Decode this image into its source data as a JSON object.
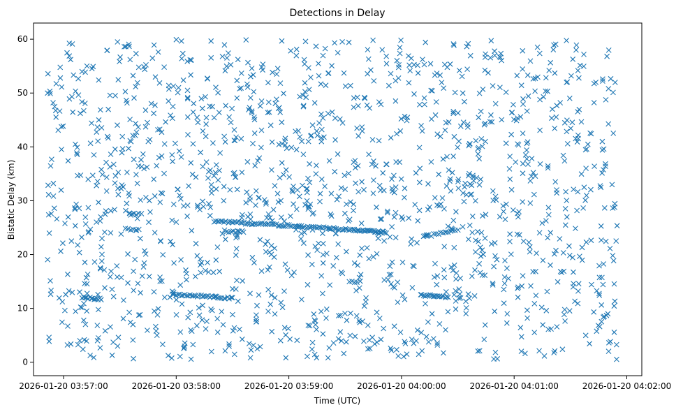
{
  "chart_data": {
    "type": "scatter",
    "title": "Detections in Delay",
    "xlabel": "Time (UTC)",
    "ylabel": "Bistatic Delay (km)",
    "marker": "x",
    "marker_color": "#1f77b4",
    "xlim": [
      "2026-01-20 03:56:44",
      "2026-01-20 04:02:08"
    ],
    "ylim": [
      -2.5,
      63
    ],
    "grid": false,
    "legend": "none",
    "x_ticks": [
      "2026-01-20 03:57:00",
      "2026-01-20 03:58:00",
      "2026-01-20 03:59:00",
      "2026-01-20 04:00:00",
      "2026-01-20 04:01:00",
      "2026-01-20 04:02:00"
    ],
    "y_ticks": [
      0,
      10,
      20,
      30,
      40,
      50,
      60
    ],
    "clutter": {
      "start": "2026-01-20 03:56:51",
      "end": "2026-01-20 04:01:55",
      "count": 1500,
      "delay_range": [
        0.5,
        60
      ]
    },
    "tracks": [
      {
        "start": "2026-01-20 03:57:10",
        "end": "2026-01-20 03:57:20",
        "delay_start": 12.0,
        "delay_end": 11.7,
        "points": 14
      },
      {
        "start": "2026-01-20 03:57:35",
        "end": "2026-01-20 03:57:40",
        "delay_start": 27.6,
        "delay_end": 27.5,
        "points": 5
      },
      {
        "start": "2026-01-20 03:57:33",
        "end": "2026-01-20 03:57:40",
        "delay_start": 24.8,
        "delay_end": 24.5,
        "points": 6
      },
      {
        "start": "2026-01-20 03:57:58",
        "end": "2026-01-20 03:58:30",
        "delay_start": 12.6,
        "delay_end": 11.9,
        "points": 35
      },
      {
        "start": "2026-01-20 03:58:20",
        "end": "2026-01-20 03:59:35",
        "delay_start": 26.2,
        "delay_end": 24.6,
        "points": 80
      },
      {
        "start": "2026-01-20 03:59:35",
        "end": "2026-01-20 03:59:52",
        "delay_start": 24.6,
        "delay_end": 24.1,
        "points": 25
      },
      {
        "start": "2026-01-20 04:00:10",
        "end": "2026-01-20 04:00:25",
        "delay_start": 12.5,
        "delay_end": 12.1,
        "points": 18
      },
      {
        "start": "2026-01-20 04:00:12",
        "end": "2026-01-20 04:00:30",
        "delay_start": 23.3,
        "delay_end": 24.6,
        "points": 15
      },
      {
        "start": "2026-01-20 03:59:32",
        "end": "2026-01-20 03:59:38",
        "delay_start": 14.9,
        "delay_end": 14.9,
        "points": 5
      },
      {
        "start": "2026-01-20 03:58:28",
        "end": "2026-01-20 03:58:36",
        "delay_start": 24.3,
        "delay_end": 24.2,
        "points": 8
      }
    ]
  }
}
